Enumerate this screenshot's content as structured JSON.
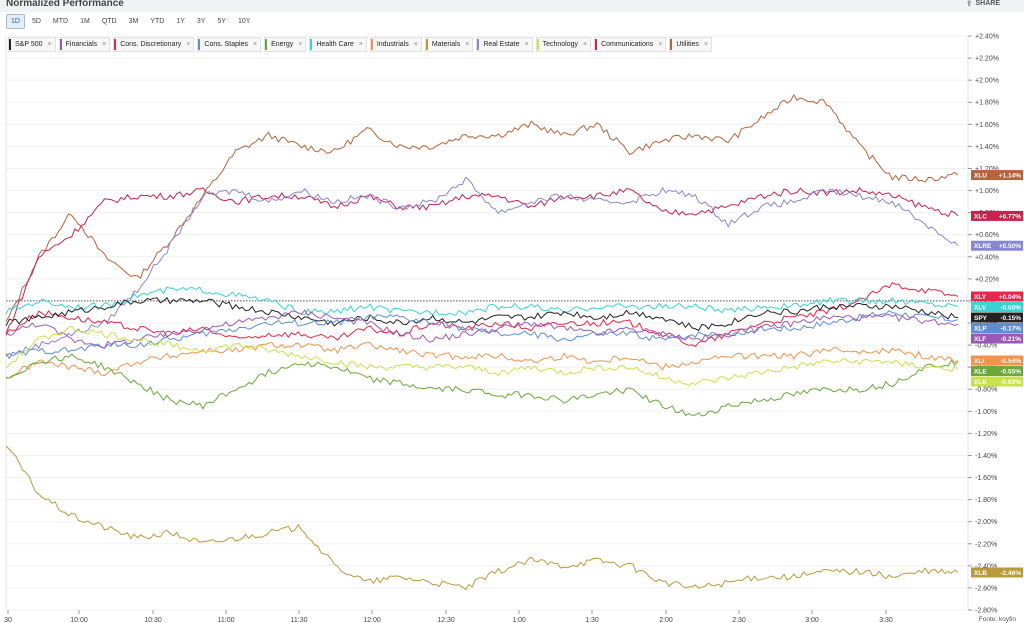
{
  "header": {
    "title": "Normalized Performance",
    "share_label": "SHARE",
    "share_icon": "share-icon"
  },
  "periods": [
    "1D",
    "5D",
    "MTD",
    "1M",
    "QTD",
    "3M",
    "YTD",
    "1Y",
    "3Y",
    "5Y",
    "10Y"
  ],
  "active_period": "1D",
  "legend": [
    {
      "label": "S&P 500",
      "color": "#222222"
    },
    {
      "label": "Financials",
      "color": "#9b59b6"
    },
    {
      "label": "Cons. Discretionary",
      "color": "#e8254a"
    },
    {
      "label": "Cons. Staples",
      "color": "#5b8fd4"
    },
    {
      "label": "Energy",
      "color": "#6aa83a"
    },
    {
      "label": "Health Care",
      "color": "#38d3d3"
    },
    {
      "label": "Industrials",
      "color": "#f4924a"
    },
    {
      "label": "Materials",
      "color": "#b89a3a"
    },
    {
      "label": "Real Estate",
      "color": "#8b86d1"
    },
    {
      "label": "Technology",
      "color": "#c9e14a"
    },
    {
      "label": "Communications",
      "color": "#c8224f"
    },
    {
      "label": "Utilities",
      "color": "#b5633b"
    }
  ],
  "source_note": "Fonte: koyfin",
  "chart_data": {
    "type": "line",
    "x_ticks": [
      "30",
      "10:00",
      "10:30",
      "11:00",
      "11:30",
      "12:00",
      "12:30",
      "1:00",
      "1:30",
      "2:00",
      "2:30",
      "3:00",
      "3:30"
    ],
    "y_ticks": [
      "+2.40%",
      "+2.20%",
      "+2.00%",
      "+1.80%",
      "+1.60%",
      "+1.40%",
      "+1.20%",
      "+1.00%",
      "+0.80%",
      "+0.60%",
      "+0.40%",
      "+0.20%",
      "0.00%",
      "-0.20%",
      "-0.40%",
      "-0.60%",
      "-0.80%",
      "-1.00%",
      "-1.20%",
      "-1.40%",
      "-1.60%",
      "-1.80%",
      "-2.00%",
      "-2.20%",
      "-2.40%",
      "-2.60%",
      "-2.80%"
    ],
    "ylim": [
      -2.8,
      2.4
    ],
    "series": [
      {
        "ticker": "XLU",
        "label": "+1.14%",
        "color": "#b5633b",
        "values": [
          -0.2,
          0.4,
          0.8,
          0.4,
          0.2,
          0.55,
          0.95,
          1.35,
          1.5,
          1.4,
          1.35,
          1.55,
          1.4,
          1.4,
          1.5,
          1.5,
          1.6,
          1.5,
          1.6,
          1.35,
          1.45,
          1.5,
          1.45,
          1.65,
          1.85,
          1.8,
          1.4,
          1.12,
          1.1,
          1.14
        ]
      },
      {
        "ticker": "XLC",
        "label": "+0.77%",
        "color": "#c8224f",
        "values": [
          -0.3,
          0.4,
          0.6,
          0.9,
          0.95,
          0.95,
          1.0,
          0.9,
          0.95,
          0.95,
          0.85,
          0.95,
          0.85,
          0.85,
          0.95,
          0.95,
          0.85,
          0.95,
          0.95,
          1.0,
          0.8,
          0.8,
          0.85,
          0.95,
          1.0,
          0.98,
          1.0,
          0.95,
          0.85,
          0.77
        ]
      },
      {
        "ticker": "XLRE",
        "label": "+0.50%",
        "color": "#8b86d1",
        "values": [
          -0.5,
          -0.4,
          -0.3,
          -0.2,
          0.1,
          0.5,
          0.95,
          1.0,
          0.9,
          1.0,
          0.9,
          0.95,
          0.85,
          0.9,
          1.1,
          0.8,
          0.9,
          0.95,
          0.9,
          0.9,
          1.0,
          0.95,
          0.7,
          0.85,
          0.9,
          1.0,
          0.95,
          0.9,
          0.7,
          0.5
        ]
      },
      {
        "ticker": "XLY",
        "label": "+0.04%",
        "color": "#e8254a",
        "values": [
          -0.3,
          -0.1,
          -0.15,
          -0.2,
          -0.25,
          -0.3,
          -0.25,
          -0.35,
          -0.3,
          -0.3,
          -0.35,
          -0.25,
          -0.3,
          -0.2,
          -0.25,
          -0.2,
          -0.25,
          -0.2,
          -0.2,
          -0.2,
          -0.3,
          -0.4,
          -0.3,
          -0.2,
          -0.15,
          -0.1,
          0.0,
          0.15,
          0.1,
          0.04
        ]
      },
      {
        "ticker": "XLV",
        "label": "-0.05%",
        "color": "#38d3d3",
        "values": [
          -0.1,
          0.0,
          -0.05,
          -0.05,
          0.05,
          0.1,
          0.1,
          0.05,
          0.0,
          -0.1,
          -0.1,
          -0.05,
          -0.1,
          -0.1,
          -0.1,
          -0.05,
          -0.05,
          -0.1,
          -0.05,
          -0.05,
          -0.05,
          -0.05,
          -0.1,
          -0.05,
          -0.05,
          0.0,
          0.0,
          0.0,
          -0.02,
          -0.05
        ]
      },
      {
        "ticker": "SPY",
        "label": "-0.15%",
        "color": "#222222",
        "values": [
          -0.2,
          -0.15,
          -0.1,
          -0.05,
          0.0,
          0.0,
          0.0,
          -0.05,
          -0.1,
          -0.15,
          -0.2,
          -0.15,
          -0.2,
          -0.15,
          -0.2,
          -0.15,
          -0.15,
          -0.1,
          -0.15,
          -0.1,
          -0.15,
          -0.25,
          -0.2,
          -0.1,
          -0.1,
          -0.05,
          -0.05,
          -0.05,
          -0.1,
          -0.15
        ]
      },
      {
        "ticker": "XLP",
        "label": "-0.17%",
        "color": "#5b8fd4",
        "values": [
          -0.5,
          -0.45,
          -0.45,
          -0.4,
          -0.4,
          -0.35,
          -0.3,
          -0.25,
          -0.2,
          -0.2,
          -0.2,
          -0.15,
          -0.15,
          -0.2,
          -0.25,
          -0.3,
          -0.3,
          -0.35,
          -0.3,
          -0.3,
          -0.35,
          -0.3,
          -0.3,
          -0.25,
          -0.25,
          -0.2,
          -0.15,
          -0.1,
          -0.15,
          -0.17
        ]
      },
      {
        "ticker": "XLF",
        "label": "-0.21%",
        "color": "#9b59b6",
        "values": [
          -0.3,
          -0.2,
          -0.35,
          -0.4,
          -0.35,
          -0.3,
          -0.25,
          -0.2,
          -0.15,
          -0.1,
          -0.15,
          -0.2,
          -0.3,
          -0.35,
          -0.3,
          -0.25,
          -0.2,
          -0.25,
          -0.3,
          -0.25,
          -0.3,
          -0.35,
          -0.3,
          -0.25,
          -0.2,
          -0.15,
          -0.15,
          -0.15,
          -0.18,
          -0.21
        ]
      },
      {
        "ticker": "XLI",
        "label": "-0.54%",
        "color": "#f4924a",
        "values": [
          -0.7,
          -0.55,
          -0.6,
          -0.65,
          -0.55,
          -0.5,
          -0.45,
          -0.45,
          -0.4,
          -0.4,
          -0.45,
          -0.4,
          -0.45,
          -0.5,
          -0.5,
          -0.5,
          -0.55,
          -0.5,
          -0.55,
          -0.5,
          -0.6,
          -0.55,
          -0.5,
          -0.5,
          -0.5,
          -0.45,
          -0.45,
          -0.45,
          -0.5,
          -0.54
        ]
      },
      {
        "ticker": "XLE",
        "label": "-0.55%",
        "color": "#6aa83a",
        "values": [
          -0.7,
          -0.55,
          -0.5,
          -0.6,
          -0.75,
          -0.9,
          -0.95,
          -0.8,
          -0.65,
          -0.55,
          -0.6,
          -0.7,
          -0.75,
          -0.8,
          -0.8,
          -0.85,
          -0.85,
          -0.9,
          -0.85,
          -0.8,
          -0.95,
          -1.05,
          -0.95,
          -0.9,
          -0.85,
          -0.8,
          -0.8,
          -0.75,
          -0.6,
          -0.55
        ]
      },
      {
        "ticker": "XLK",
        "label": "-0.62%",
        "color": "#c9e14a",
        "values": [
          -0.6,
          -0.35,
          -0.25,
          -0.3,
          -0.35,
          -0.4,
          -0.45,
          -0.4,
          -0.45,
          -0.5,
          -0.55,
          -0.6,
          -0.6,
          -0.6,
          -0.6,
          -0.65,
          -0.6,
          -0.65,
          -0.6,
          -0.6,
          -0.7,
          -0.75,
          -0.7,
          -0.65,
          -0.6,
          -0.55,
          -0.55,
          -0.55,
          -0.6,
          -0.62
        ]
      },
      {
        "ticker": "XLB",
        "label": "-2.46%",
        "color": "#b89a3a",
        "values": [
          -1.3,
          -1.75,
          -1.95,
          -2.05,
          -2.15,
          -2.1,
          -2.2,
          -2.15,
          -2.1,
          -2.05,
          -2.4,
          -2.55,
          -2.5,
          -2.55,
          -2.6,
          -2.45,
          -2.35,
          -2.4,
          -2.35,
          -2.4,
          -2.55,
          -2.6,
          -2.55,
          -2.5,
          -2.5,
          -2.45,
          -2.45,
          -2.5,
          -2.45,
          -2.46
        ]
      }
    ]
  }
}
